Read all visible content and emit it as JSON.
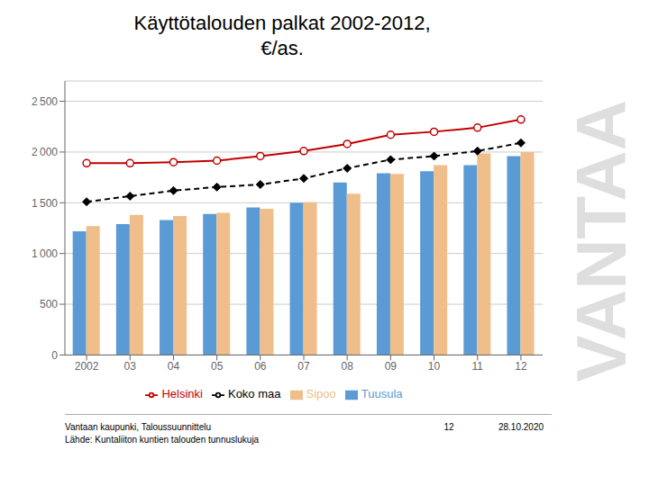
{
  "chart_data": {
    "type": "bar",
    "title": "Käyttötalouden palkat 2002-2012,\n€/as.",
    "categories": [
      "2002",
      "03",
      "04",
      "05",
      "06",
      "07",
      "08",
      "09",
      "10",
      "11",
      "12"
    ],
    "series": [
      {
        "name": "Tuusula",
        "type": "bar",
        "color": "#5B9BD5",
        "values": [
          1220,
          1290,
          1330,
          1390,
          1455,
          1500,
          1700,
          1790,
          1810,
          1870,
          1960
        ]
      },
      {
        "name": "Sipoo",
        "type": "bar",
        "color": "#F0BE8A",
        "values": [
          1270,
          1380,
          1370,
          1400,
          1440,
          1505,
          1590,
          1785,
          1870,
          1985,
          2000
        ]
      },
      {
        "name": "Helsinki",
        "type": "line",
        "color": "#C00000",
        "marker": "circle",
        "line_style": "solid",
        "values": [
          1890,
          1890,
          1900,
          1915,
          1960,
          2010,
          2080,
          2170,
          2200,
          2240,
          2320
        ]
      },
      {
        "name": "Koko maa",
        "type": "line",
        "color": "#000000",
        "marker": "diamond",
        "line_style": "dashed",
        "values": [
          1510,
          1565,
          1620,
          1655,
          1680,
          1740,
          1840,
          1925,
          1960,
          2010,
          2090
        ]
      }
    ],
    "ylim": [
      0,
      2700
    ],
    "yticks": [
      0,
      500,
      {
        "value": 1000,
        "label": "1 000"
      },
      {
        "value": 1500,
        "label": "1 500"
      },
      {
        "value": 2000,
        "label": "2 000"
      },
      {
        "value": 2500,
        "label": "2 500"
      }
    ],
    "grid": true,
    "legend": "bottom",
    "annotations": [
      "VANTAA",
      "Vantaan kaupunki, Taloussuunnittelu\nLähde: Kuntaliiton kuntien talouden tunnuslukuja",
      "12",
      "28.10.2020"
    ]
  }
}
